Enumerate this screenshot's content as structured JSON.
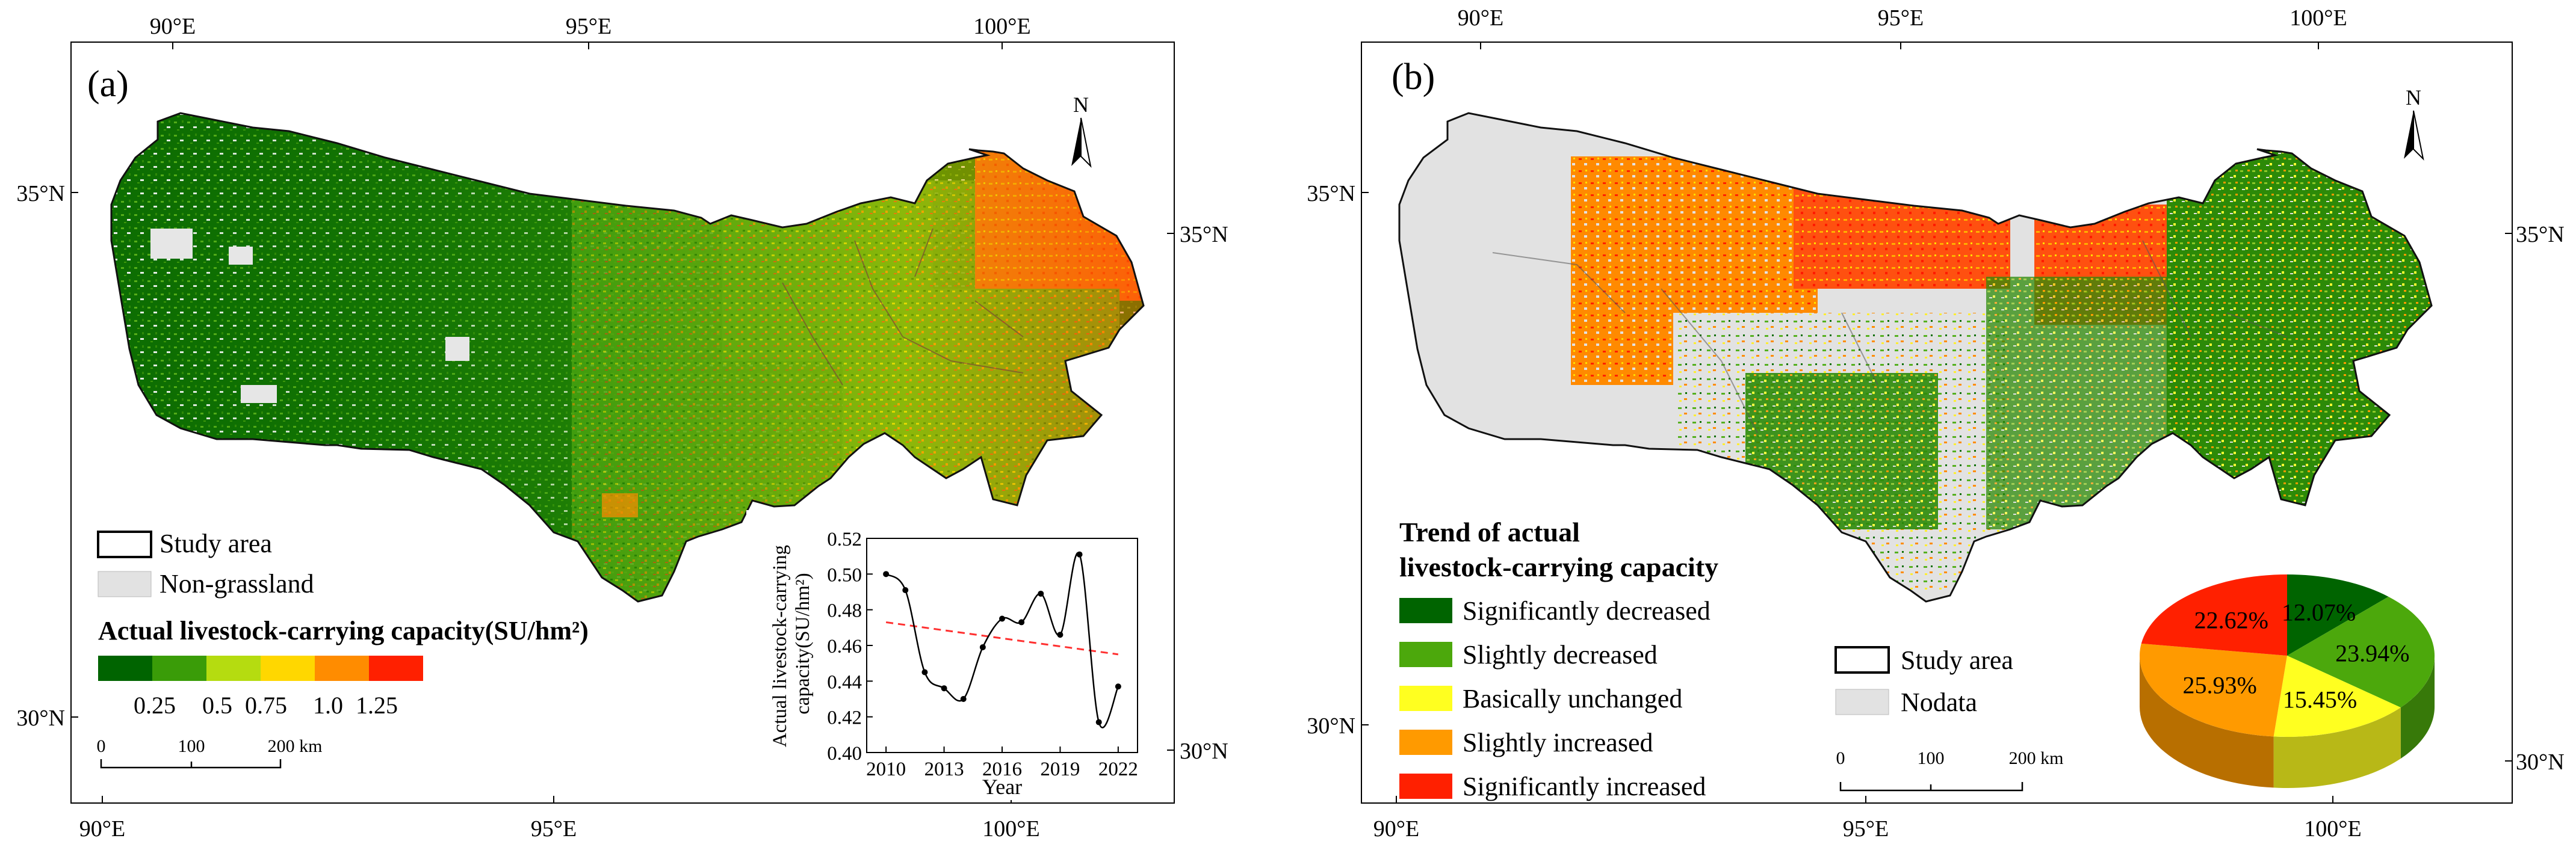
{
  "panel_a": {
    "label": "(a)",
    "ticks": {
      "top": [
        "90°E",
        "95°E",
        "100°E"
      ],
      "bottom": [
        "90°E",
        "95°E",
        "100°E"
      ],
      "left": [
        "35°N",
        "30°N"
      ],
      "right": [
        "35°N",
        "30°N"
      ]
    },
    "north": "N",
    "legend": {
      "study_area": "Study area",
      "non_grassland": "Non-grassland",
      "title": "Actual livestock-carrying capacity(SU/hm²)",
      "colors": [
        "#006400",
        "#3a9c08",
        "#b5dc10",
        "#ffd700",
        "#ff8c00",
        "#ff2000"
      ],
      "tick_labels": [
        "0.25",
        "0.5",
        "0.75",
        "1.0",
        "1.25"
      ]
    },
    "scale_bar": {
      "labels": [
        "0",
        "100",
        "200 km"
      ]
    },
    "inset_chart": {
      "type": "line",
      "ylabel": "Actual livestock-carrying capacity(SU/hm²)",
      "xlabel": "Year",
      "x_ticks": [
        "2010",
        "2013",
        "2016",
        "2019",
        "2022"
      ],
      "y_ticks": [
        "0.40",
        "0.42",
        "0.44",
        "0.46",
        "0.48",
        "0.50",
        "0.52"
      ]
    }
  },
  "panel_b": {
    "label": "(b)",
    "ticks": {
      "top": [
        "90°E",
        "95°E",
        "100°E"
      ],
      "bottom": [
        "90°E",
        "95°E",
        "100°E"
      ],
      "left": [
        "35°N",
        "30°N"
      ],
      "right": [
        "35°N",
        "30°N"
      ]
    },
    "north": "N",
    "legend": {
      "title_line1": "Trend of actual",
      "title_line2": "livestock-carrying capacity",
      "items": [
        {
          "label": "Significantly decreased",
          "color": "#006400"
        },
        {
          "label": "Slightly decreased",
          "color": "#4ca80c"
        },
        {
          "label": "Basically unchanged",
          "color": "#ffff20"
        },
        {
          "label": "Slightly increased",
          "color": "#ff9a00"
        },
        {
          "label": "Significantly increased",
          "color": "#ff2000"
        }
      ],
      "study_area": "Study area",
      "nodata": "Nodata"
    },
    "scale_bar": {
      "labels": [
        "0",
        "100",
        "200 km"
      ]
    }
  },
  "chart_data": [
    {
      "type": "line",
      "title": "",
      "xlabel": "Year",
      "ylabel": "Actual livestock-carrying capacity(SU/hm²)",
      "x": [
        2010,
        2011,
        2012,
        2013,
        2014,
        2015,
        2016,
        2017,
        2018,
        2019,
        2020,
        2021,
        2022
      ],
      "series": [
        {
          "name": "capacity",
          "values": [
            0.5,
            0.491,
            0.445,
            0.436,
            0.43,
            0.459,
            0.475,
            0.473,
            0.489,
            0.466,
            0.511,
            0.417,
            0.437
          ]
        },
        {
          "name": "trend",
          "style": "dashed",
          "color": "#ff3030",
          "values": [
            0.473,
            0.4715,
            0.47,
            0.4685,
            0.467,
            0.4655,
            0.464,
            0.4625,
            0.461,
            0.4595,
            0.458,
            0.4565,
            0.455
          ]
        }
      ],
      "xlim": [
        2009,
        2023
      ],
      "ylim": [
        0.4,
        0.52
      ]
    },
    {
      "type": "pie",
      "categories": [
        "Significantly decreased",
        "Slightly decreased",
        "Basically unchanged",
        "Slightly increased",
        "Significantly increased"
      ],
      "values": [
        12.07,
        23.94,
        15.45,
        25.93,
        22.62
      ],
      "labels": [
        "12.07%",
        "23.94%",
        "15.45%",
        "25.93%",
        "22.62%"
      ],
      "colors": [
        "#006400",
        "#4ca80c",
        "#ffff20",
        "#ff9a00",
        "#ff2000"
      ]
    }
  ]
}
